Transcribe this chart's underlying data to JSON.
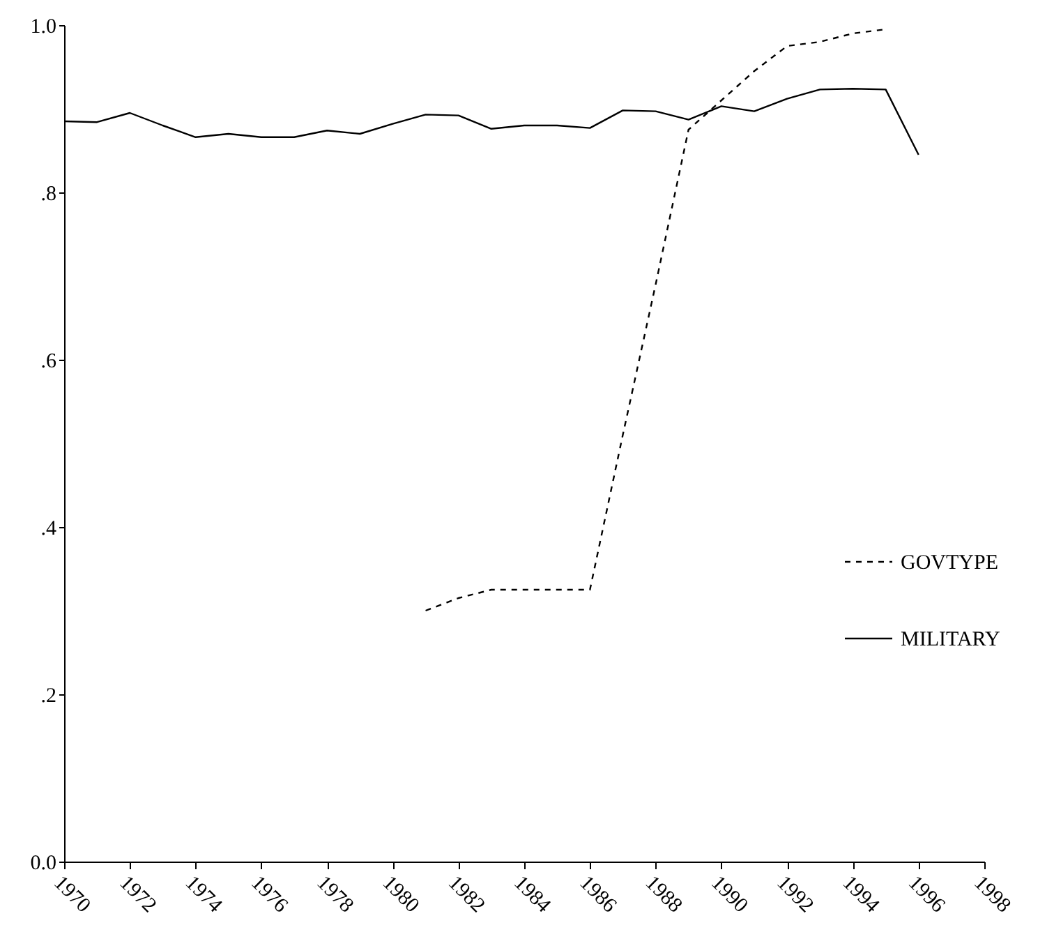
{
  "chart_data": {
    "type": "line",
    "xlim": [
      1970,
      1998
    ],
    "xticks": [
      1970,
      1972,
      1974,
      1976,
      1978,
      1980,
      1982,
      1984,
      1986,
      1988,
      1990,
      1992,
      1994,
      1996,
      1998
    ],
    "ylim": [
      0,
      1
    ],
    "yticks": [
      {
        "value": 0,
        "label": "0.0"
      },
      {
        "value": 0.2,
        "label": ".2"
      },
      {
        "value": 0.4,
        "label": ".4"
      },
      {
        "value": 0.6,
        "label": ".6"
      },
      {
        "value": 0.8,
        "label": ".8"
      },
      {
        "value": 1,
        "label": "1.0"
      }
    ],
    "legend": "right",
    "grid": false,
    "marker": "none",
    "series": [
      {
        "name": "GOVTYPE",
        "color": "#000000",
        "line_style": "dashed",
        "x": [
          1981,
          1982,
          1983,
          1984,
          1985,
          1986,
          1987,
          1988,
          1989,
          1990,
          1991,
          1992,
          1993,
          1994,
          1995
        ],
        "values": [
          0.3,
          0.315,
          0.325,
          0.325,
          0.325,
          0.325,
          0.51,
          0.69,
          0.875,
          0.91,
          0.945,
          0.975,
          0.98,
          0.99,
          0.995
        ]
      },
      {
        "name": "MILITARY",
        "color": "#000000",
        "line_style": "solid",
        "x": [
          1970,
          1971,
          1972,
          1973,
          1974,
          1975,
          1976,
          1977,
          1978,
          1979,
          1980,
          1981,
          1982,
          1983,
          1984,
          1985,
          1986,
          1987,
          1988,
          1989,
          1990,
          1991,
          1992,
          1993,
          1994,
          1995,
          1996
        ],
        "values": [
          0.885,
          0.884,
          0.895,
          0.88,
          0.866,
          0.87,
          0.866,
          0.866,
          0.874,
          0.87,
          0.882,
          0.893,
          0.892,
          0.876,
          0.88,
          0.88,
          0.877,
          0.898,
          0.897,
          0.887,
          0.903,
          0.897,
          0.912,
          0.923,
          0.924,
          0.923,
          0.845
        ]
      }
    ]
  }
}
